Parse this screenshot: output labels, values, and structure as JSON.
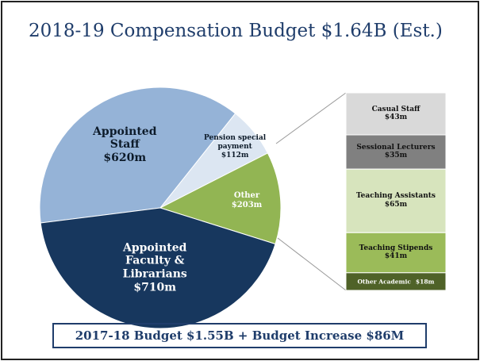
{
  "chart_data": {
    "type": "pie-of-bar",
    "title": "2018-19 Compensation Budget $1.64B (Est.)",
    "categories": [
      "Appointed Staff",
      "Pension special payment",
      "Other",
      "Appointed Faculty & Librarians"
    ],
    "values": [
      620,
      112,
      203,
      710
    ],
    "value_labels": [
      "$620m",
      "$112m",
      "$203m",
      "$710m"
    ],
    "colors": [
      "#95b3d7",
      "#dce6f2",
      "#92b553",
      "#17375e"
    ],
    "label_colors": [
      "#0d1b2a",
      "#0d1b2a",
      "#ffffff",
      "#ffffff"
    ],
    "breakdown": {
      "categories": [
        "Casual Staff",
        "Sessional Lecturers",
        "Teaching Assistants",
        "Teaching Stipends",
        "Other Academic"
      ],
      "values": [
        43,
        35,
        65,
        41,
        18
      ],
      "value_labels": [
        "$43m",
        "$35m",
        "$65m",
        "$41m",
        "$18m"
      ],
      "colors": [
        "#d9d9d9",
        "#808080",
        "#d7e4bd",
        "#9bbb59",
        "#4f6228"
      ],
      "label_colors": [
        "#111111",
        "#111111",
        "#111111",
        "#111111",
        "#ffffff"
      ]
    },
    "annotation": "2017-18 Budget $1.55B + Budget Increase $86M"
  }
}
